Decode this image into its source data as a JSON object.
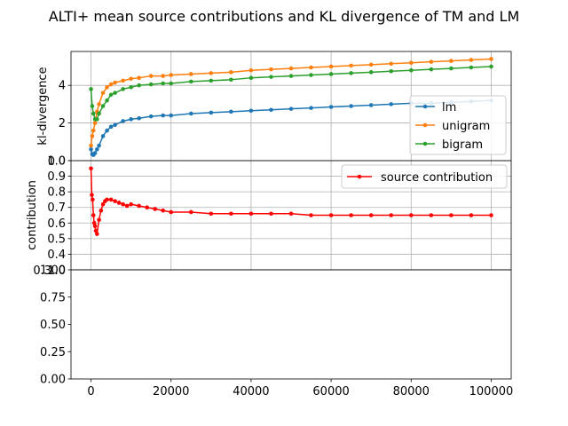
{
  "title": "ALTI+ mean source contributions and KL divergence of TM and LM",
  "chart_data": [
    {
      "type": "line",
      "ylabel": "kl-divergence",
      "xlim": [
        -5000,
        105000
      ],
      "ylim": [
        0,
        5.8
      ],
      "yticks": [
        0,
        2,
        4
      ],
      "grid": true,
      "legend": "right",
      "series": [
        {
          "name": "lm",
          "color": "#1f77b4",
          "x": [
            0,
            300,
            600,
            1000,
            1500,
            2000,
            3000,
            4000,
            5000,
            6000,
            8000,
            10000,
            12000,
            15000,
            18000,
            20000,
            25000,
            30000,
            35000,
            40000,
            45000,
            50000,
            55000,
            60000,
            65000,
            70000,
            75000,
            80000,
            85000,
            90000,
            95000,
            100000
          ],
          "y": [
            0.6,
            0.35,
            0.3,
            0.4,
            0.6,
            0.8,
            1.3,
            1.6,
            1.8,
            1.9,
            2.1,
            2.2,
            2.25,
            2.35,
            2.4,
            2.4,
            2.5,
            2.55,
            2.6,
            2.65,
            2.7,
            2.75,
            2.8,
            2.85,
            2.9,
            2.95,
            3.0,
            3.05,
            3.05,
            3.1,
            3.15,
            3.2
          ]
        },
        {
          "name": "unigram",
          "color": "#ff7f0e",
          "x": [
            0,
            300,
            600,
            1000,
            1500,
            2000,
            3000,
            4000,
            5000,
            6000,
            8000,
            10000,
            12000,
            15000,
            18000,
            20000,
            25000,
            30000,
            35000,
            40000,
            45000,
            50000,
            55000,
            60000,
            65000,
            70000,
            75000,
            80000,
            85000,
            90000,
            95000,
            100000
          ],
          "y": [
            0.8,
            1.3,
            1.6,
            2.0,
            2.6,
            3.0,
            3.6,
            3.9,
            4.05,
            4.15,
            4.25,
            4.35,
            4.4,
            4.5,
            4.5,
            4.55,
            4.6,
            4.65,
            4.7,
            4.8,
            4.85,
            4.9,
            4.95,
            5.0,
            5.05,
            5.1,
            5.15,
            5.2,
            5.25,
            5.3,
            5.35,
            5.4
          ]
        },
        {
          "name": "bigram",
          "color": "#2ca02c",
          "x": [
            0,
            300,
            600,
            1000,
            1500,
            2000,
            3000,
            4000,
            5000,
            6000,
            8000,
            10000,
            12000,
            15000,
            18000,
            20000,
            25000,
            30000,
            35000,
            40000,
            45000,
            50000,
            55000,
            60000,
            65000,
            70000,
            75000,
            80000,
            85000,
            90000,
            95000,
            100000
          ],
          "y": [
            3.8,
            2.9,
            2.5,
            2.2,
            2.2,
            2.5,
            2.9,
            3.2,
            3.5,
            3.6,
            3.8,
            3.9,
            4.0,
            4.05,
            4.1,
            4.1,
            4.2,
            4.25,
            4.3,
            4.4,
            4.45,
            4.5,
            4.55,
            4.6,
            4.65,
            4.7,
            4.75,
            4.8,
            4.85,
            4.9,
            4.95,
            5.0
          ]
        }
      ]
    },
    {
      "type": "line",
      "ylabel": "contribution",
      "xlim": [
        -5000,
        105000
      ],
      "ylim": [
        0.3,
        1.0
      ],
      "yticks": [
        0.4,
        0.5,
        0.6,
        0.7,
        0.8,
        0.9,
        1.0
      ],
      "ytick_labels": [
        "0.4",
        "0.5",
        "0.6",
        "0.7",
        "0.8",
        "0.9",
        "1.0"
      ],
      "grid": true,
      "legend": "top-right",
      "series": [
        {
          "name": "source contribution",
          "color": "#ff0000",
          "x": [
            0,
            200,
            400,
            600,
            800,
            1000,
            1200,
            1500,
            2000,
            2500,
            3000,
            3500,
            4000,
            5000,
            6000,
            7000,
            8000,
            9000,
            10000,
            12000,
            14000,
            16000,
            18000,
            20000,
            25000,
            30000,
            35000,
            40000,
            45000,
            50000,
            55000,
            60000,
            65000,
            70000,
            75000,
            80000,
            85000,
            90000,
            95000,
            100000
          ],
          "y": [
            0.95,
            0.78,
            0.75,
            0.65,
            0.6,
            0.58,
            0.55,
            0.53,
            0.62,
            0.68,
            0.72,
            0.74,
            0.75,
            0.75,
            0.74,
            0.73,
            0.72,
            0.71,
            0.72,
            0.71,
            0.7,
            0.69,
            0.68,
            0.67,
            0.67,
            0.66,
            0.66,
            0.66,
            0.66,
            0.66,
            0.65,
            0.65,
            0.65,
            0.65,
            0.65,
            0.65,
            0.65,
            0.65,
            0.65,
            0.65
          ]
        }
      ]
    },
    {
      "type": "line",
      "ylabel": "",
      "xlim": [
        -5000,
        105000
      ],
      "ylim": [
        0,
        1.0
      ],
      "yticks": [
        0.0,
        0.25,
        0.5,
        0.75,
        1.0
      ],
      "ytick_labels": [
        "0.00",
        "0.25",
        "0.50",
        "0.75",
        "1.00"
      ],
      "xticks": [
        0,
        20000,
        40000,
        60000,
        80000,
        100000
      ],
      "xtick_labels": [
        "0",
        "20000",
        "40000",
        "60000",
        "80000",
        "100000"
      ],
      "grid": false,
      "series": []
    }
  ],
  "overlap_labels": {
    "panel1_bottom_extra": "0",
    "panel2_bottom_extra": "0.3",
    "panel3_top_extra": "1.0"
  }
}
